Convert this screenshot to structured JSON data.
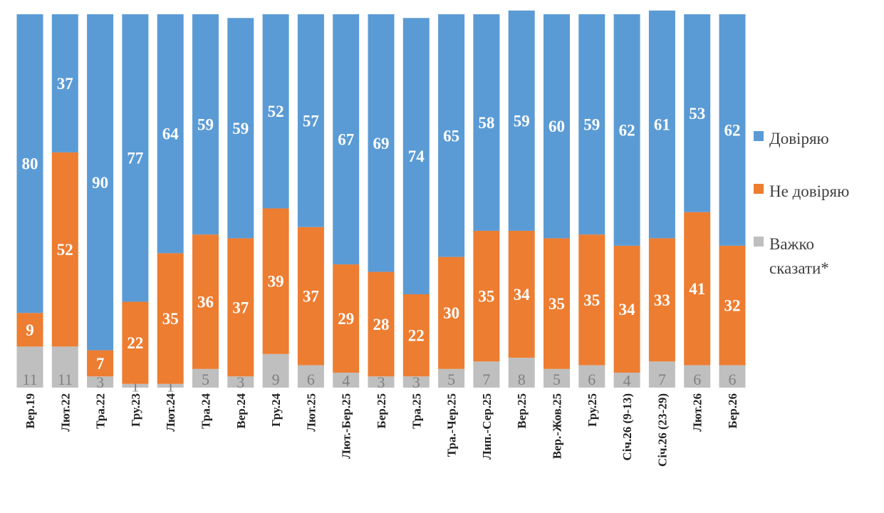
{
  "chart_data": {
    "type": "bar",
    "stacked": true,
    "categories": [
      "Вер.19",
      "Лют.22",
      "Тра.22",
      "Гру.23",
      "Лют.24",
      "Тра.24",
      "Вер.24",
      "Гру.24",
      "Лют.25",
      "Лют.-Бер.25",
      "Бер.25",
      "Тра.25",
      "Тра.-Чер.25",
      "Лип.-Сер.25",
      "Вер.25",
      "Вер.-Жов.25",
      "Гру.25",
      "Січ.26 (9-13)",
      "Січ.26 (23-29)",
      "Лют.26",
      "Бер.26"
    ],
    "series": [
      {
        "name": "Довіряю",
        "color": "#5B9BD5",
        "values": [
          80,
          37,
          90,
          77,
          64,
          59,
          59,
          52,
          57,
          67,
          69,
          74,
          65,
          58,
          59,
          60,
          59,
          62,
          61,
          53,
          62
        ]
      },
      {
        "name": "Не довіряю",
        "color": "#ED7D31",
        "values": [
          9,
          52,
          7,
          22,
          35,
          36,
          37,
          39,
          37,
          29,
          28,
          22,
          30,
          35,
          34,
          35,
          35,
          34,
          33,
          41,
          32
        ]
      },
      {
        "name": "Важко сказати*",
        "color": "#BFBFBF",
        "values": [
          11,
          11,
          3,
          1,
          1,
          5,
          3,
          9,
          6,
          4,
          3,
          3,
          5,
          7,
          8,
          5,
          6,
          4,
          7,
          6,
          6
        ]
      }
    ],
    "ylim": [
      0,
      100
    ],
    "legend_position": "right",
    "grid": false
  }
}
